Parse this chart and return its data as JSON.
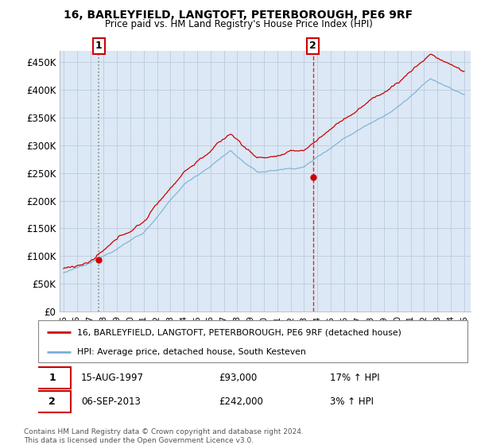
{
  "title": "16, BARLEYFIELD, LANGTOFT, PETERBOROUGH, PE6 9RF",
  "subtitle": "Price paid vs. HM Land Registry's House Price Index (HPI)",
  "ylabel_ticks": [
    "£0",
    "£50K",
    "£100K",
    "£150K",
    "£200K",
    "£250K",
    "£300K",
    "£350K",
    "£400K",
    "£450K"
  ],
  "ytick_values": [
    0,
    50000,
    100000,
    150000,
    200000,
    250000,
    300000,
    350000,
    400000,
    450000
  ],
  "ylim": [
    0,
    470000
  ],
  "year_start": 1995,
  "year_end": 2025,
  "sale1_date": "15-AUG-1997",
  "sale1_year": 1997.62,
  "sale1_price": 93000,
  "sale1_label": "1",
  "sale1_hpi": "17% ↑ HPI",
  "sale2_date": "06-SEP-2013",
  "sale2_year": 2013.67,
  "sale2_price": 242000,
  "sale2_label": "2",
  "sale2_hpi": "3% ↑ HPI",
  "line1_color": "#cc0000",
  "line2_color": "#7bafd4",
  "legend_line1": "16, BARLEYFIELD, LANGTOFT, PETERBOROUGH, PE6 9RF (detached house)",
  "legend_line2": "HPI: Average price, detached house, South Kesteven",
  "footnote": "Contains HM Land Registry data © Crown copyright and database right 2024.\nThis data is licensed under the Open Government Licence v3.0.",
  "plot_bg": "#dce8f5",
  "grid_color": "#c0cfe0"
}
